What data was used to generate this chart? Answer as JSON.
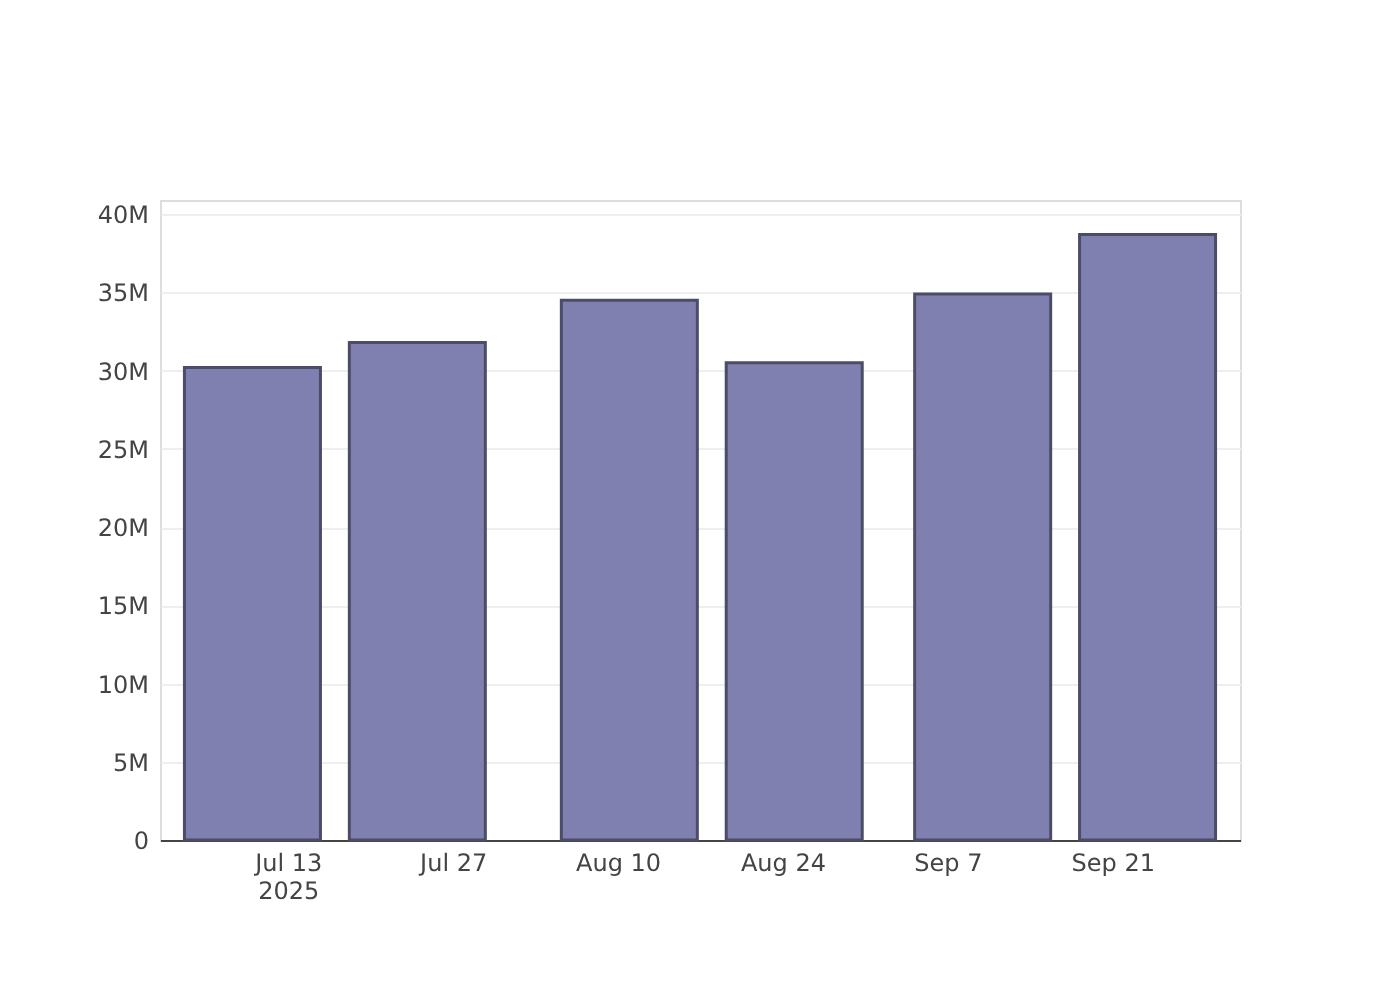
{
  "chart_data": {
    "type": "bar",
    "x": [
      "2025-07-10",
      "2025-07-24",
      "2025-08-11",
      "2025-08-25",
      "2025-09-10",
      "2025-09-24"
    ],
    "values": [
      30200000,
      31800000,
      34500000,
      30500000,
      34900000,
      38700000
    ],
    "color": "#8080b0",
    "xlim": [
      "2025-07-03",
      "2025-10-01"
    ],
    "xticks": [
      {
        "value": "2025-07-13",
        "label": "Jul 13\n2025"
      },
      {
        "value": "2025-07-27",
        "label": "Jul 27"
      },
      {
        "value": "2025-08-10",
        "label": "Aug 10"
      },
      {
        "value": "2025-08-24",
        "label": "Aug 24"
      },
      {
        "value": "2025-09-07",
        "label": "Sep 7"
      },
      {
        "value": "2025-09-21",
        "label": "Sep 21"
      }
    ],
    "ylim": [
      0,
      40900000
    ],
    "yticks": [
      {
        "value": 0,
        "label": "0"
      },
      {
        "value": 5000000,
        "label": "5M"
      },
      {
        "value": 10000000,
        "label": "10M"
      },
      {
        "value": 15000000,
        "label": "15M"
      },
      {
        "value": 20000000,
        "label": "20M"
      },
      {
        "value": 25000000,
        "label": "25M"
      },
      {
        "value": 30000000,
        "label": "30M"
      },
      {
        "value": 35000000,
        "label": "35M"
      },
      {
        "value": 40000000,
        "label": "40M"
      }
    ],
    "grid": "y"
  }
}
